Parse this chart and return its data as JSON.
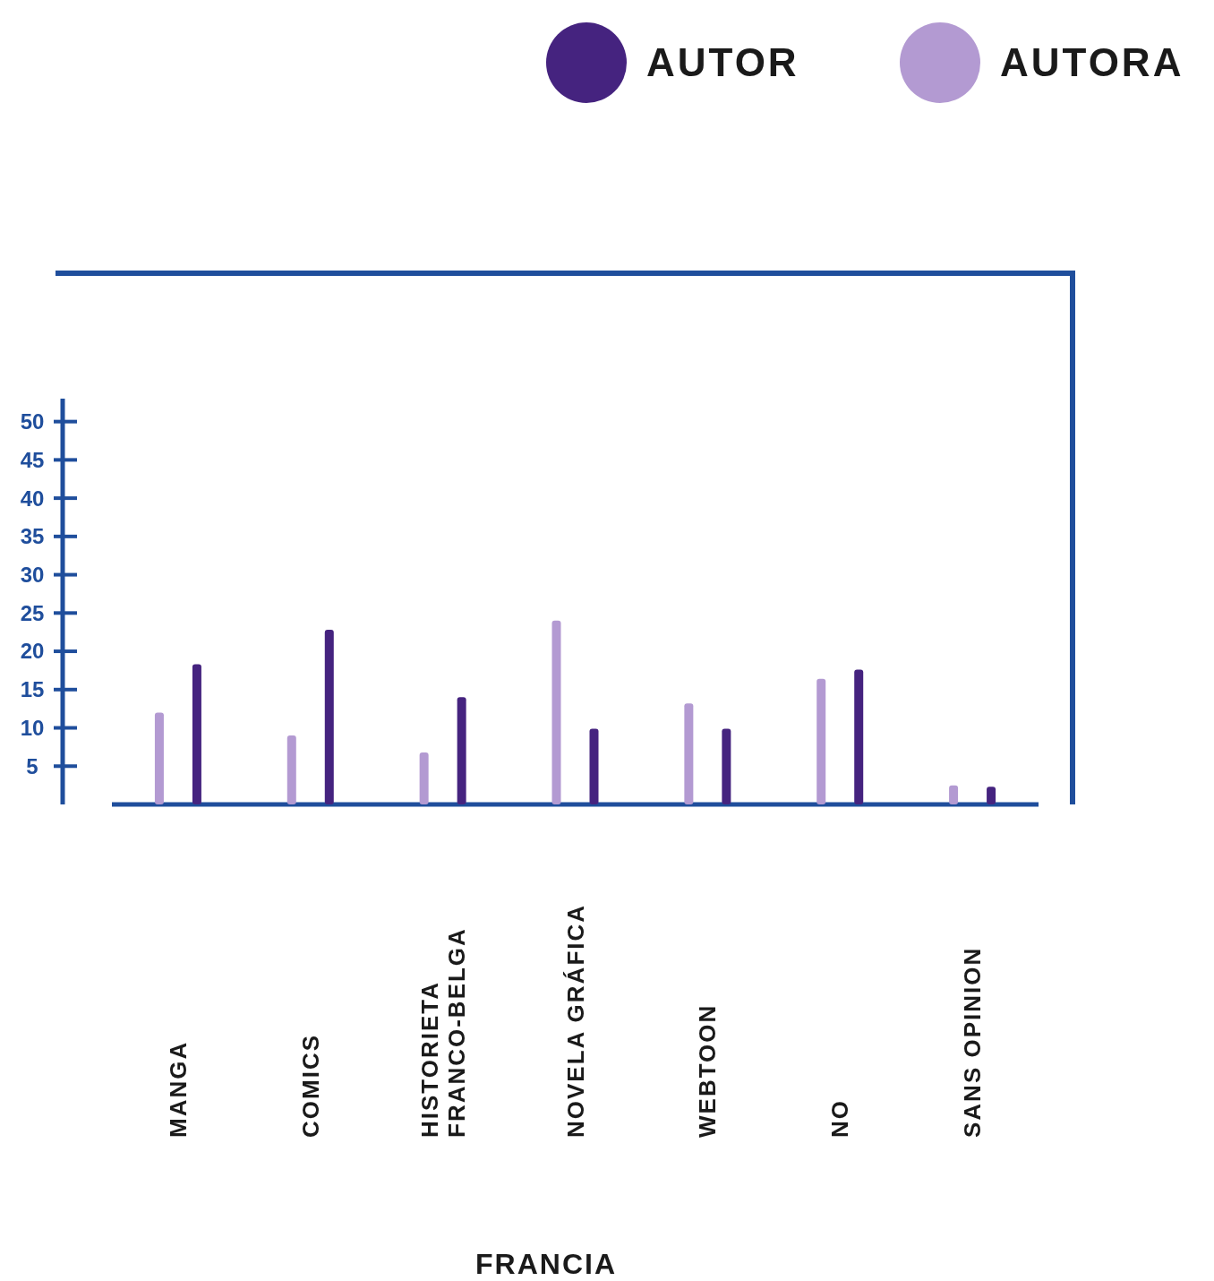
{
  "chart_data": {
    "type": "bar",
    "xlabel": "FRANCIA",
    "categories": [
      "MANGA",
      "COMICS",
      "HISTORIETA\nFRANCO-BELGA",
      "NOVELA GRÁFICA",
      "WEBTOON",
      "NO",
      "SANS OPINION"
    ],
    "series": [
      {
        "name": "AUTORA",
        "color": "#b39ad2",
        "values": [
          12,
          9,
          6.8,
          24,
          13.2,
          16.4,
          2.5
        ]
      },
      {
        "name": "AUTOR",
        "color": "#45237f",
        "values": [
          18.3,
          22.8,
          14,
          9.9,
          9.9,
          17.6,
          2.3
        ]
      }
    ],
    "ylim": [
      0,
      53
    ],
    "yticks": [
      5,
      10,
      15,
      20,
      25,
      30,
      35,
      40,
      45,
      50
    ],
    "legend": "top right",
    "grid": false
  }
}
